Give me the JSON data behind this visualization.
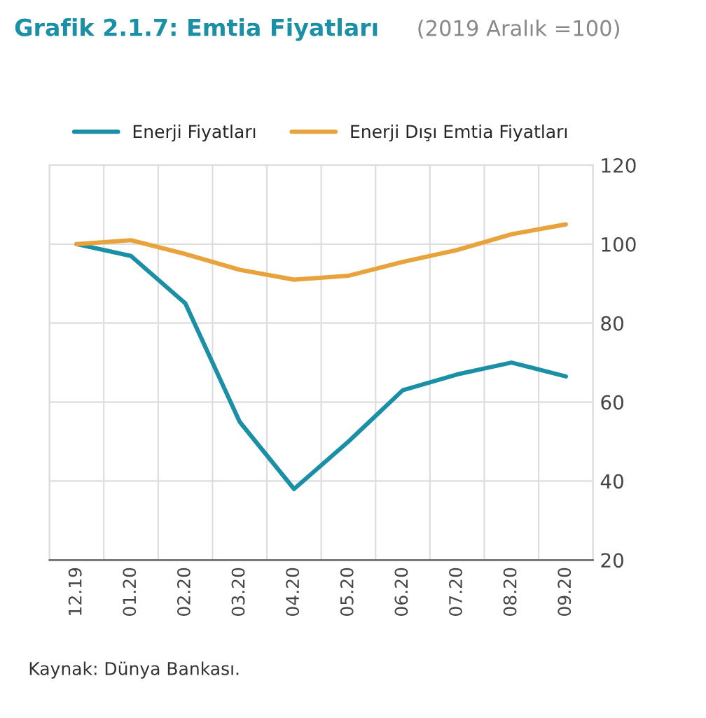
{
  "chart_data": {
    "type": "line",
    "title": "Grafik 2.1.7: Emtia Fiyatları",
    "subtitle": "(2019 Aralık =100)",
    "categories": [
      "12.19",
      "01.20",
      "02.20",
      "03.20",
      "04.20",
      "05.20",
      "06.20",
      "07.20",
      "08.20",
      "09.20"
    ],
    "series": [
      {
        "name": "Enerji Fiyatları",
        "color": "#1a8fa6",
        "values": [
          100,
          97,
          85,
          55,
          38,
          50,
          63,
          67,
          70,
          66.5
        ]
      },
      {
        "name": "Enerji Dışı Emtia Fiyatları",
        "color": "#e8a33d",
        "values": [
          100,
          101,
          97.5,
          93.5,
          91,
          92,
          95.5,
          98.5,
          102.5,
          105
        ]
      }
    ],
    "ylim": [
      20,
      120
    ],
    "yticks": [
      20,
      40,
      60,
      80,
      100,
      120
    ],
    "grid": true,
    "legend": "top",
    "line_style": "solid",
    "marker": "none",
    "annotations": [
      "Kaynak: Dünya Bankası."
    ]
  }
}
